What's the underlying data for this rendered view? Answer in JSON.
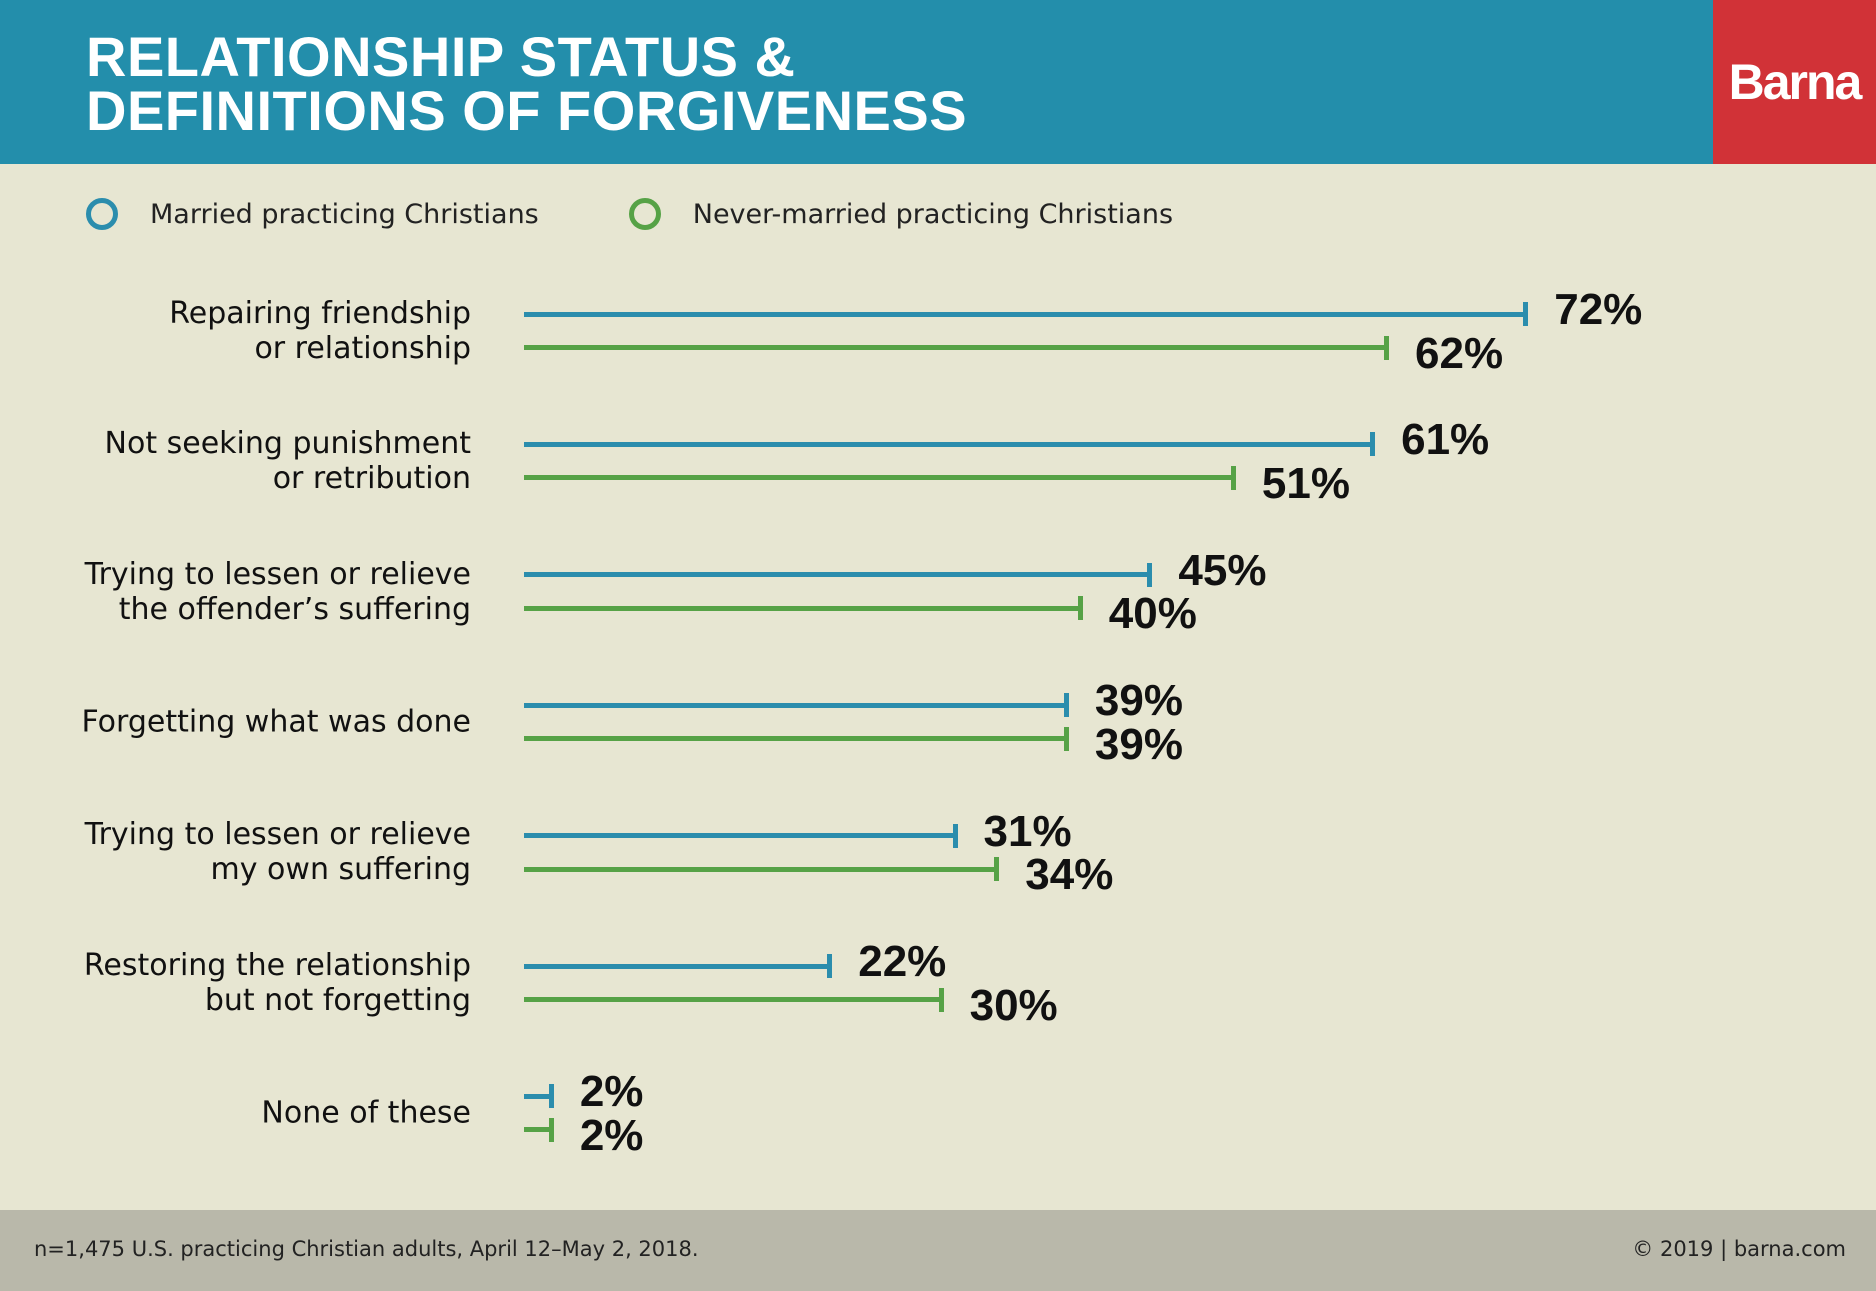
{
  "header": {
    "title_line1": "RELATIONSHIP STATUS &",
    "title_line2": "DEFINITIONS OF FORGIVENESS",
    "logo": "Barna"
  },
  "colors": {
    "married": "#2b8dad",
    "never_married": "#56a246",
    "header": "#238eab",
    "logo_bg": "#d13237"
  },
  "chart_data": {
    "type": "bar",
    "orientation": "horizontal",
    "title": "RELATIONSHIP STATUS & DEFINITIONS OF FORGIVENESS",
    "legend_placement": "top-left",
    "categories": [
      "Repairing friendship\nor relationship",
      "Not seeking punishment\nor retribution",
      "Trying to lessen or relieve\nthe offender’s suffering",
      "Forgetting what was done",
      "Trying to lessen or relieve\nmy own suffering",
      "Restoring the relationship\nbut not forgetting",
      "None of these"
    ],
    "series": [
      {
        "name": "Married practicing Christians",
        "values": [
          72,
          61,
          45,
          39,
          31,
          22,
          2
        ]
      },
      {
        "name": "Never-married practicing Christians",
        "values": [
          62,
          51,
          40,
          39,
          34,
          30,
          2
        ]
      }
    ],
    "unit": "%",
    "xlim": [
      0,
      100
    ]
  },
  "footer": {
    "source": "n=1,475 U.S. practicing Christian adults, April 12–May 2, 2018.",
    "copyright": "© 2019 | barna.com"
  }
}
